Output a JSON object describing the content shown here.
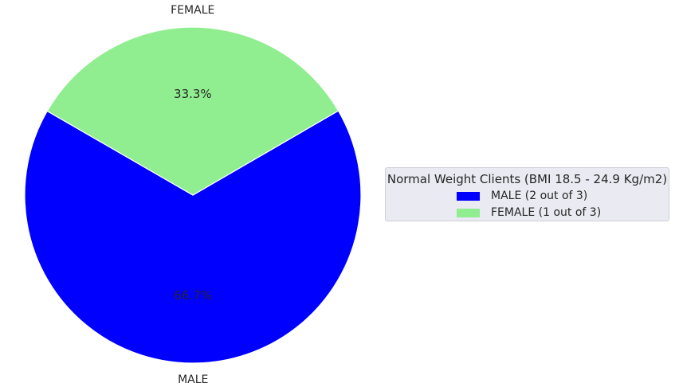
{
  "chart_data": {
    "type": "pie",
    "slices": [
      {
        "label": "MALE",
        "value": 66.7,
        "pct_label": "66.7%",
        "color": "#0000ff"
      },
      {
        "label": "FEMALE",
        "value": 33.3,
        "pct_label": "33.3%",
        "color": "#90ee90"
      }
    ],
    "legend": {
      "title": "Normal Weight Clients (BMI 18.5 - 24.9 Kg/m2)",
      "placement": "right",
      "entries": [
        {
          "label": "MALE (2 out of 3)",
          "color": "#0000ff"
        },
        {
          "label": "FEMALE (1 out of 3)",
          "color": "#90ee90"
        }
      ]
    }
  }
}
